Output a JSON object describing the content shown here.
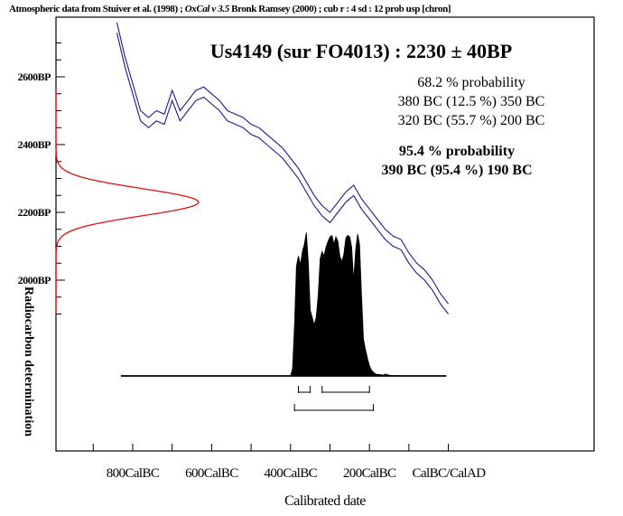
{
  "header": {
    "text_a": "Atmospheric data from Stuiver et al. (1998) ; ",
    "text_b": "OxCal  v 3.5",
    "text_c": "  Bronk Ramsey (2000) ; cub r : 4 sd : 12 prob usp [chron]"
  },
  "chart_data": {
    "type": "line",
    "title": "Us4149 (sur FO4013) : 2230 ± 40BP",
    "xlabel": "Calibrated date",
    "ylabel": "Radiocarbon determination",
    "x_unit": "calendar year (negative = BC)",
    "xlim": [
      -990,
      10
    ],
    "ylim": [
      1870,
      2745
    ],
    "x_ticks": [
      {
        "value": -800,
        "label": "800CalBC"
      },
      {
        "value": -600,
        "label": "600CalBC"
      },
      {
        "value": -400,
        "label": "400CalBC"
      },
      {
        "value": -200,
        "label": "200CalBC"
      },
      {
        "value": 1,
        "label": "CalBC/CalAD"
      }
    ],
    "y_ticks": [
      {
        "value": 2000,
        "label": "2000BP"
      },
      {
        "value": 2200,
        "label": "2200BP"
      },
      {
        "value": 2400,
        "label": "2400BP"
      },
      {
        "value": 2600,
        "label": "2600BP"
      }
    ],
    "radiocarbon_measurement": {
      "mean": 2230,
      "sd": 40,
      "label": "2230 ± 40BP"
    },
    "calibration_curve": {
      "x": [
        -840,
        -820,
        -800,
        -780,
        -760,
        -740,
        -720,
        -700,
        -680,
        -660,
        -640,
        -620,
        -600,
        -580,
        -560,
        -540,
        -520,
        -500,
        -480,
        -460,
        -440,
        -420,
        -400,
        -380,
        -360,
        -340,
        -320,
        -300,
        -280,
        -260,
        -240,
        -220,
        -200,
        -180,
        -160,
        -140,
        -120,
        -100,
        -80,
        -60,
        -40,
        -20,
        0
      ],
      "upper": [
        2760,
        2660,
        2580,
        2500,
        2480,
        2500,
        2490,
        2560,
        2500,
        2530,
        2560,
        2570,
        2550,
        2530,
        2500,
        2490,
        2480,
        2460,
        2450,
        2430,
        2410,
        2390,
        2360,
        2330,
        2290,
        2250,
        2220,
        2200,
        2230,
        2260,
        2280,
        2240,
        2210,
        2180,
        2150,
        2130,
        2120,
        2080,
        2050,
        2030,
        2000,
        1960,
        1930
      ],
      "lower": [
        2730,
        2630,
        2550,
        2470,
        2450,
        2470,
        2460,
        2530,
        2470,
        2500,
        2530,
        2540,
        2520,
        2500,
        2470,
        2460,
        2450,
        2430,
        2420,
        2400,
        2380,
        2360,
        2330,
        2300,
        2260,
        2220,
        2190,
        2170,
        2200,
        2230,
        2250,
        2210,
        2180,
        2150,
        2120,
        2100,
        2090,
        2050,
        2020,
        2000,
        1970,
        1930,
        1900
      ]
    },
    "calibrated_distribution": {
      "x": [
        -400,
        -395,
        -390,
        -385,
        -380,
        -375,
        -370,
        -365,
        -360,
        -355,
        -350,
        -345,
        -340,
        -335,
        -330,
        -325,
        -320,
        -315,
        -310,
        -305,
        -300,
        -295,
        -290,
        -285,
        -280,
        -275,
        -270,
        -265,
        -260,
        -255,
        -250,
        -245,
        -240,
        -235,
        -230,
        -225,
        -220,
        -215,
        -210,
        -205,
        -200,
        -195,
        -190,
        -185,
        -180,
        -175,
        -170,
        -165,
        -160,
        -155,
        -150,
        -145,
        -140,
        -135,
        -130,
        -125,
        -120,
        -115,
        -110,
        -105,
        -100
      ],
      "density": [
        0.0,
        0.05,
        0.35,
        0.75,
        0.82,
        0.76,
        0.85,
        0.9,
        0.98,
        0.78,
        0.45,
        0.4,
        0.35,
        0.4,
        0.55,
        0.8,
        0.85,
        0.82,
        0.88,
        0.92,
        0.95,
        0.96,
        0.9,
        0.95,
        0.92,
        0.82,
        0.78,
        0.83,
        0.94,
        0.96,
        0.95,
        0.88,
        0.65,
        0.86,
        0.97,
        0.9,
        0.55,
        0.25,
        0.18,
        0.12,
        0.07,
        0.04,
        0.025,
        0.015,
        0.01,
        0.01,
        0.008,
        0.005,
        0.012,
        0.01,
        0.005,
        0.003,
        0.002,
        0.002,
        0.001,
        0.001,
        0.001,
        0.0,
        0.0,
        0.0,
        0.0
      ]
    },
    "ranges": {
      "p68": {
        "heading": "68.2 % probability",
        "items": [
          {
            "from": -380,
            "to": -350,
            "text": "380 BC (12.5 %) 350 BC"
          },
          {
            "from": -320,
            "to": -200,
            "text": "320 BC (55.7 %) 200 BC"
          }
        ]
      },
      "p95": {
        "heading": "95.4 % probability",
        "items": [
          {
            "from": -390,
            "to": -190,
            "text": "390 BC (95.4 %) 190 BC"
          }
        ]
      }
    },
    "colors": {
      "curve": "#1a1a8c",
      "measurement": "#e01010",
      "distribution": "#000000"
    },
    "grid": false
  }
}
